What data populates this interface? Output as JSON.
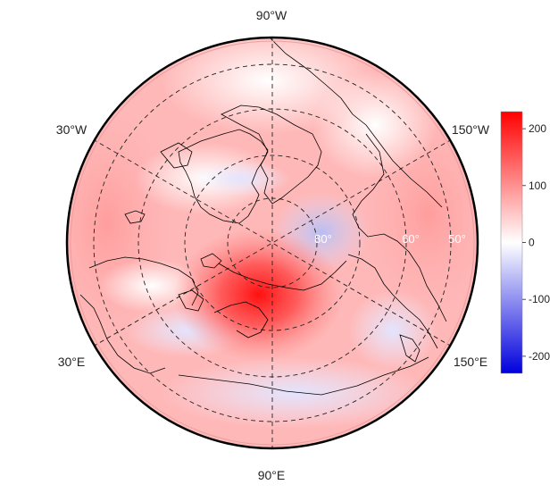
{
  "map": {
    "projection": "north polar stereographic",
    "colormap": [
      "#0000ff",
      "#ffffff",
      "#ff0000"
    ],
    "longitude_labels": {
      "top": "90°W",
      "upper_left": "30°W",
      "upper_right": "150°W",
      "lower_left": "30°E",
      "lower_right": "150°E",
      "bottom": "90°E"
    },
    "latitude_labels": [
      "80°",
      "60°",
      "50°"
    ]
  },
  "colorbar": {
    "min": -230,
    "max": 230,
    "ticks": [
      "200",
      "100",
      "0",
      "-100",
      "-200"
    ],
    "colors": {
      "high": "#ff0000",
      "mid": "#ffffff",
      "low": "#0000cc"
    }
  }
}
